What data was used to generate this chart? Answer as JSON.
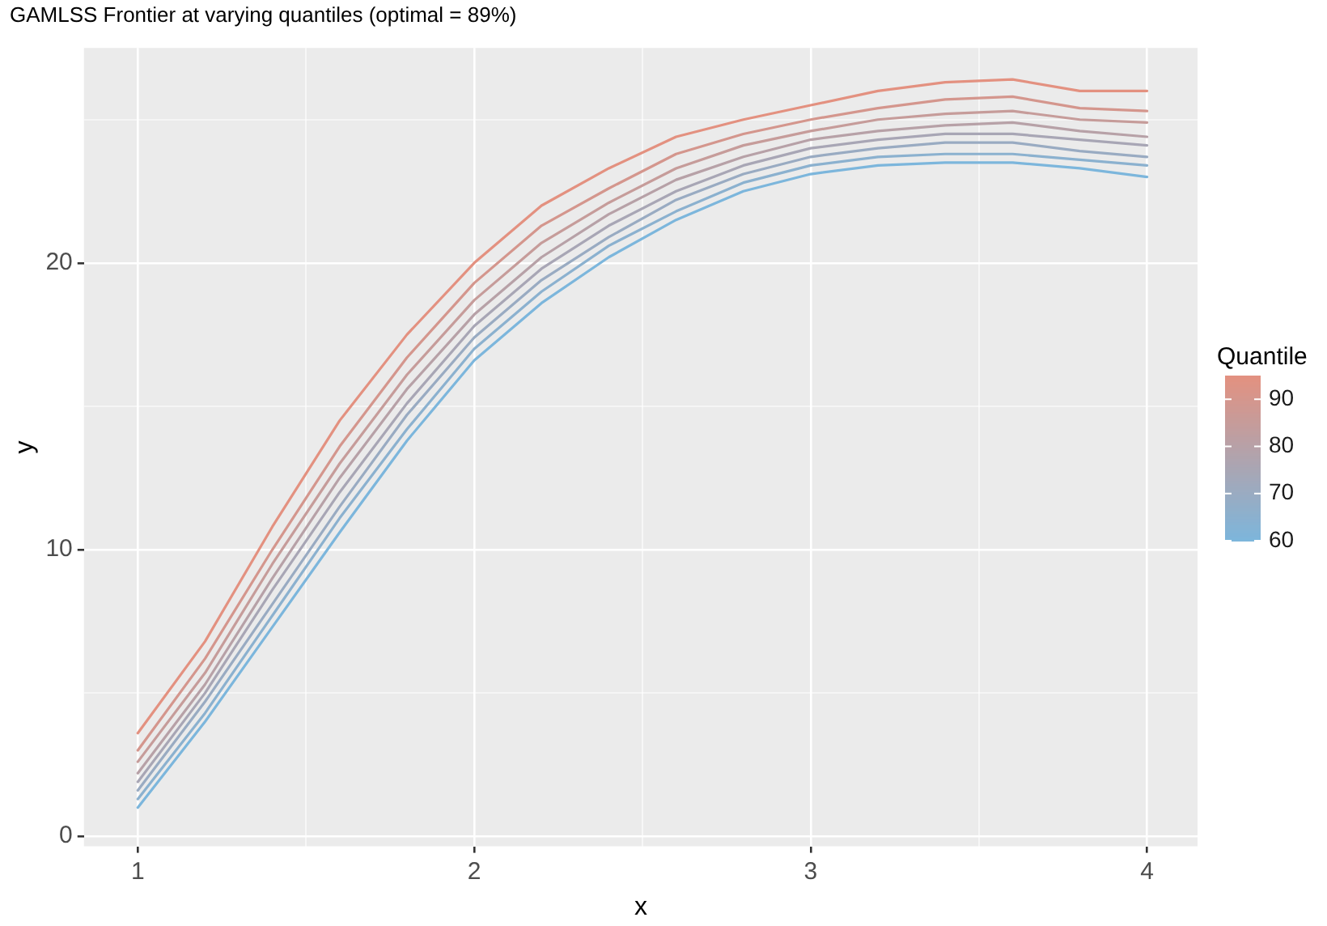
{
  "chart_data": {
    "type": "line",
    "title": "GAMLSS Frontier at varying quantiles (optimal = 89%)",
    "xlabel": "x",
    "ylabel": "y",
    "clabel": "Quantile",
    "clim": [
      60,
      95
    ],
    "cticks": [
      60,
      70,
      80,
      90
    ],
    "x": [
      1.0,
      1.2,
      1.4,
      1.6,
      1.8,
      2.0,
      2.2,
      2.4,
      2.6,
      2.8,
      3.0,
      3.2,
      3.4,
      3.6,
      3.8,
      4.0
    ],
    "xlim": [
      0.84,
      4.15
    ],
    "xticks": [
      {
        "value": 1,
        "label": "1"
      },
      {
        "value": 1.5,
        "label": null
      },
      {
        "value": 2,
        "label": "2"
      },
      {
        "value": 2.5,
        "label": null
      },
      {
        "value": 3,
        "label": "3"
      },
      {
        "value": 3.5,
        "label": null
      },
      {
        "value": 4,
        "label": "4"
      }
    ],
    "ylim": [
      -0.35,
      27.5
    ],
    "yticks": [
      0,
      {
        "value": 5,
        "label": null
      },
      10,
      {
        "value": 15,
        "label": null
      },
      20,
      {
        "value": 25,
        "label": null
      }
    ],
    "grid": true,
    "legend": false,
    "marker": "none",
    "line_style": "solid",
    "series": [
      {
        "color": "#7cb6dc",
        "values": [
          1.0,
          4.0,
          7.3,
          10.6,
          13.8,
          16.6,
          18.6,
          20.2,
          21.5,
          22.5,
          23.1,
          23.4,
          23.5,
          23.5,
          23.3,
          23.0
        ]
      },
      {
        "color": "#8bb1cf",
        "values": [
          1.3,
          4.3,
          7.7,
          11.1,
          14.2,
          17.0,
          19.0,
          20.6,
          21.8,
          22.8,
          23.4,
          23.7,
          23.8,
          23.8,
          23.6,
          23.4
        ]
      },
      {
        "color": "#99abc2",
        "values": [
          1.6,
          4.7,
          8.1,
          11.5,
          14.7,
          17.4,
          19.4,
          20.9,
          22.2,
          23.1,
          23.7,
          24.0,
          24.2,
          24.2,
          23.9,
          23.7
        ]
      },
      {
        "color": "#a8a6b5",
        "values": [
          1.9,
          5.0,
          8.6,
          12.0,
          15.1,
          17.8,
          19.8,
          21.3,
          22.5,
          23.4,
          24.0,
          24.3,
          24.5,
          24.5,
          24.3,
          24.1
        ]
      },
      {
        "color": "#b7a1a7",
        "values": [
          2.2,
          5.3,
          9.0,
          12.5,
          15.6,
          18.2,
          20.2,
          21.7,
          22.9,
          23.7,
          24.3,
          24.6,
          24.8,
          24.9,
          24.6,
          24.4
        ]
      },
      {
        "color": "#c69c9a",
        "values": [
          2.6,
          5.7,
          9.5,
          13.0,
          16.1,
          18.7,
          20.7,
          22.1,
          23.3,
          24.1,
          24.6,
          25.0,
          25.2,
          25.3,
          25.0,
          24.9
        ]
      },
      {
        "color": "#d4968d",
        "values": [
          3.0,
          6.2,
          10.0,
          13.6,
          16.7,
          19.3,
          21.3,
          22.6,
          23.8,
          24.5,
          25.0,
          25.4,
          25.7,
          25.8,
          25.4,
          25.3
        ]
      },
      {
        "color": "#e39180",
        "values": [
          3.6,
          6.8,
          10.8,
          14.5,
          17.5,
          20.0,
          22.0,
          23.3,
          24.4,
          25.0,
          25.5,
          26.0,
          26.3,
          26.4,
          26.0,
          26.0
        ]
      }
    ]
  }
}
